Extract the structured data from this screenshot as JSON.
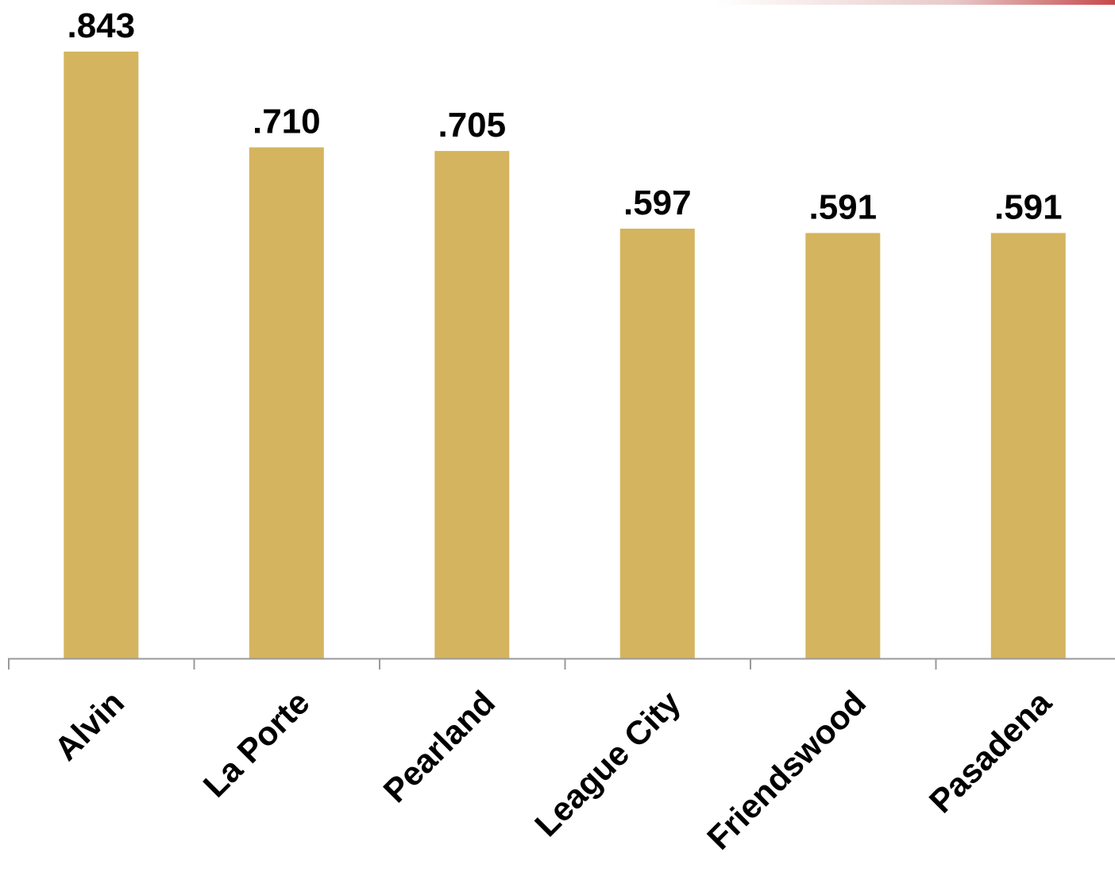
{
  "colors": {
    "bar": "#D4B45E",
    "axis": "#9a9a9a",
    "text": "#000000",
    "accent": "#c64a4a"
  },
  "chart_data": {
    "type": "bar",
    "categories": [
      "Alvin",
      "La Porte",
      "Pearland",
      "League City",
      "Friendswood",
      "Pasadena"
    ],
    "values": [
      0.843,
      0.71,
      0.705,
      0.597,
      0.591,
      0.591
    ],
    "data_labels": [
      ".843",
      ".710",
      ".705",
      ".597",
      ".591",
      ".591"
    ],
    "title": "",
    "xlabel": "",
    "ylabel": "",
    "ylim": [
      0,
      0.843
    ],
    "grid": false,
    "legend": "none"
  }
}
